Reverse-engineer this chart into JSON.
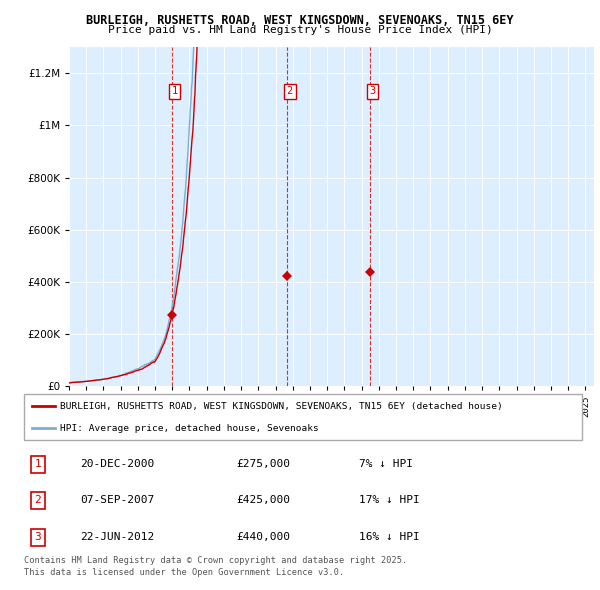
{
  "title1": "BURLEIGH, RUSHETTS ROAD, WEST KINGSDOWN, SEVENOAKS, TN15 6EY",
  "title2": "Price paid vs. HM Land Registry's House Price Index (HPI)",
  "ylim": [
    0,
    1300000
  ],
  "yticks": [
    0,
    200000,
    400000,
    600000,
    800000,
    1000000,
    1200000
  ],
  "xlim_start": 1995.0,
  "xlim_end": 2025.5,
  "transactions": [
    {
      "date": "20-DEC-2000",
      "year": 2000.97,
      "price": 275000,
      "label": "1",
      "pct": "7%"
    },
    {
      "date": "07-SEP-2007",
      "year": 2007.68,
      "price": 425000,
      "label": "2",
      "pct": "17%"
    },
    {
      "date": "22-JUN-2012",
      "year": 2012.47,
      "price": 440000,
      "label": "3",
      "pct": "16%"
    }
  ],
  "red_line_color": "#cc0000",
  "blue_line_color": "#7aafd4",
  "chart_bg_color": "#ddeeff",
  "grid_color": "#ffffff",
  "legend_label_red": "BURLEIGH, RUSHETTS ROAD, WEST KINGSDOWN, SEVENOAKS, TN15 6EY (detached house)",
  "legend_label_blue": "HPI: Average price, detached house, Sevenoaks",
  "footer1": "Contains HM Land Registry data © Crown copyright and database right 2025.",
  "footer2": "This data is licensed under the Open Government Licence v3.0."
}
